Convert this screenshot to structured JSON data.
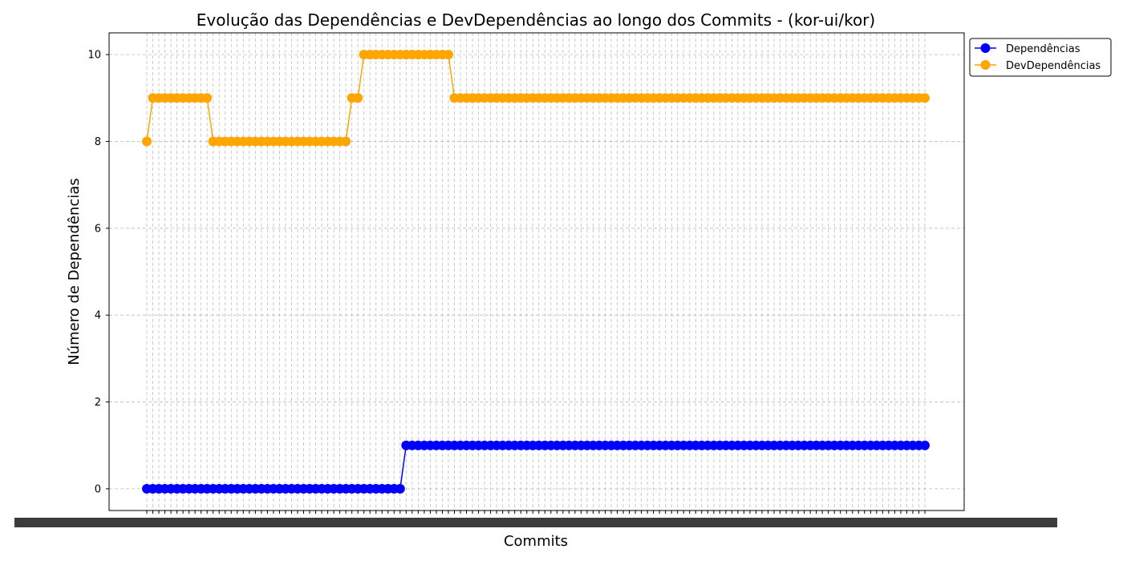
{
  "chart_data": {
    "type": "line",
    "title": "Evolução das Dependências e DevDependências ao longo dos Commits - (kor-ui/kor)",
    "xlabel": "Commits",
    "ylabel": "Número de Dependências",
    "ylim": [
      -0.5,
      10.5
    ],
    "yticks": [
      0,
      2,
      4,
      6,
      8,
      10
    ],
    "grid": true,
    "legend_position": "outside-top-right",
    "x_count": 130,
    "series": [
      {
        "name": "Dependências",
        "color": "#0000ff",
        "segments": [
          [
            0,
            42,
            0
          ],
          [
            43,
            129,
            1
          ]
        ]
      },
      {
        "name": "DevDependências",
        "color": "#ffa500",
        "segments": [
          [
            0,
            0,
            8
          ],
          [
            1,
            10,
            9
          ],
          [
            11,
            33,
            8
          ],
          [
            34,
            35,
            9
          ],
          [
            36,
            50,
            10
          ],
          [
            51,
            129,
            9
          ]
        ]
      }
    ]
  }
}
